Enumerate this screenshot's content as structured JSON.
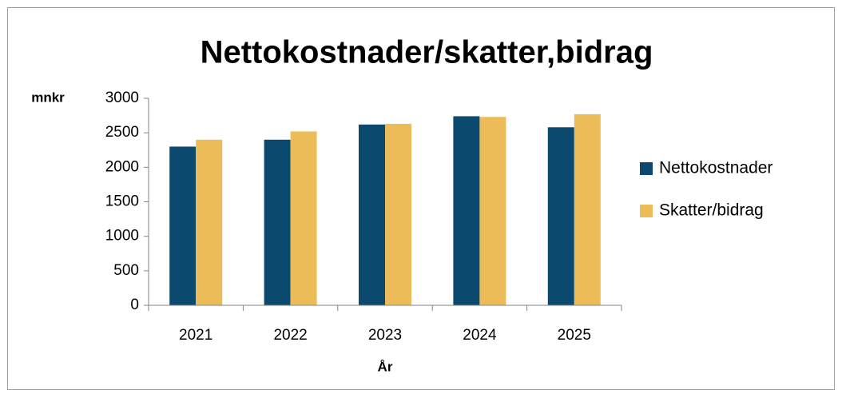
{
  "chart_data": {
    "type": "bar",
    "title": "Nettokostnader/skatter,bidrag",
    "y_label": "mnkr",
    "x_label": "År",
    "categories": [
      "2021",
      "2022",
      "2023",
      "2024",
      "2025"
    ],
    "series": [
      {
        "name": "Nettokostnader",
        "color": "#0b4a6e",
        "values": [
          2300,
          2400,
          2620,
          2740,
          2580
        ]
      },
      {
        "name": "Skatter/bidrag",
        "color": "#ecbc59",
        "values": [
          2400,
          2520,
          2630,
          2730,
          2770
        ]
      }
    ],
    "ylim": [
      0,
      3000
    ],
    "yticks": [
      0,
      500,
      1000,
      1500,
      2000,
      2500,
      3000
    ],
    "grid": false,
    "legend": "right"
  }
}
